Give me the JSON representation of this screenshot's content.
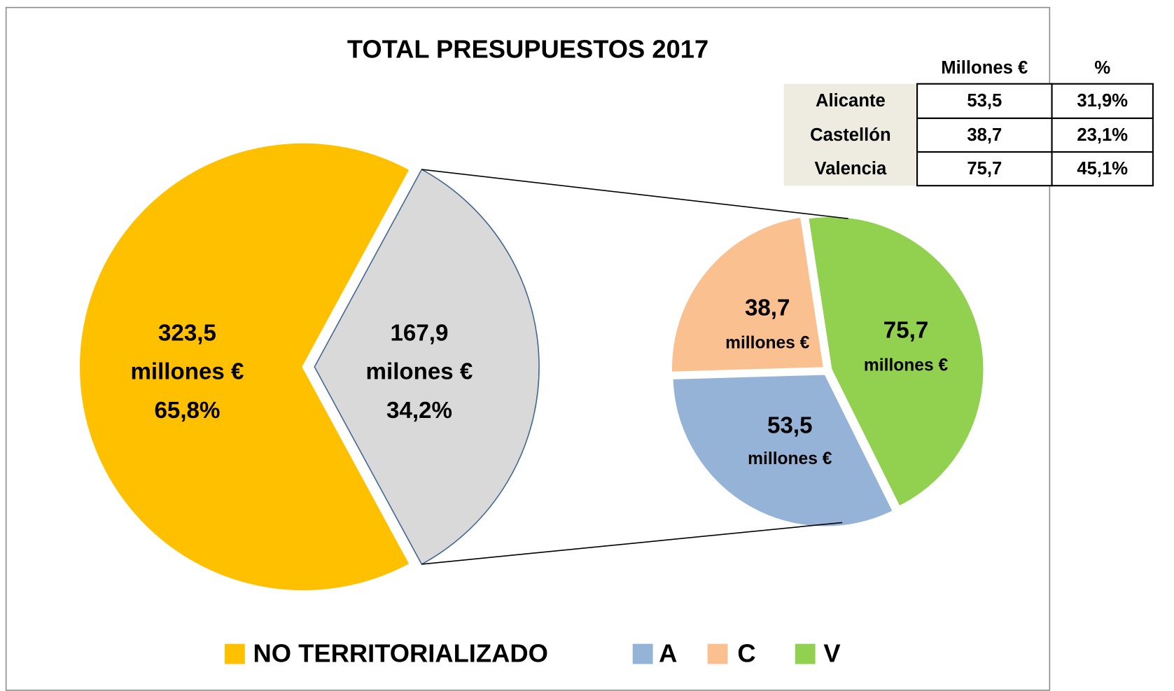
{
  "chart_data": {
    "type": "pie-of-pie",
    "title": "TOTAL PRESUPUESTOS 2017",
    "main": {
      "values": [
        323.5,
        167.9
      ],
      "value_labels": [
        "323,5",
        "167,9"
      ],
      "unit_labels": [
        "millones €",
        "milones €"
      ],
      "percents": [
        65.8,
        34.2
      ],
      "percent_labels": [
        "65,8%",
        "34,2%"
      ],
      "colors": [
        "#ffc000",
        "#d9d9d9"
      ]
    },
    "secondary": {
      "values": [
        75.7,
        53.5,
        38.7
      ],
      "value_labels": [
        "75,7",
        "53,5",
        "38,7"
      ],
      "unit_labels": [
        "millones €",
        "millones €",
        "millones €"
      ],
      "colors": [
        "#92d050",
        "#95b3d7",
        "#fac090"
      ]
    },
    "legend": [
      {
        "name": "NO TERRITORIALIZADO",
        "color": "#ffc000"
      },
      {
        "name": "A",
        "color": "#95b3d7"
      },
      {
        "name": "C",
        "color": "#fac090"
      },
      {
        "name": "V",
        "color": "#92d050"
      }
    ]
  },
  "table": {
    "header": [
      "Millones €",
      "%"
    ],
    "rows": [
      [
        "Alicante",
        "53,5",
        "31,9%"
      ],
      [
        "Castellón",
        "38,7",
        "23,1%"
      ],
      [
        "Valencia",
        "75,7",
        "45,1%"
      ]
    ]
  }
}
